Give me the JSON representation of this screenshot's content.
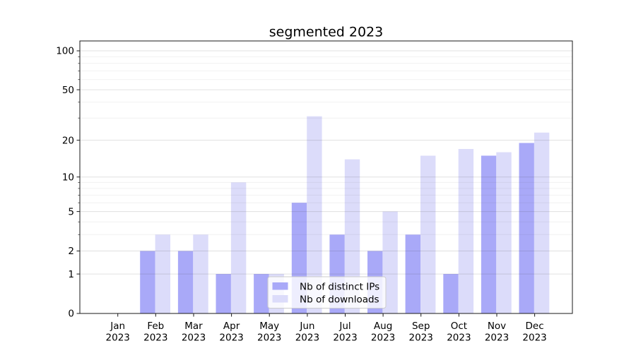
{
  "chart_data": {
    "type": "bar",
    "title": "segmented 2023",
    "categories": [
      "Jan",
      "Feb",
      "Mar",
      "Apr",
      "May",
      "Jun",
      "Jul",
      "Aug",
      "Sep",
      "Oct",
      "Nov",
      "Dec"
    ],
    "category_year": "2023",
    "series": [
      {
        "name": "Nb of distinct IPs",
        "color": "#a9a9f8",
        "values": [
          0,
          2,
          2,
          1,
          1,
          6,
          3,
          2,
          3,
          1,
          15,
          19
        ]
      },
      {
        "name": "Nb of downloads",
        "color": "#dcdcfa",
        "values": [
          0,
          3,
          3,
          9,
          1,
          31,
          14,
          5,
          15,
          17,
          16,
          23
        ]
      }
    ],
    "y_axis": {
      "scale": "segmented-log1p",
      "major_ticks": [
        0,
        1,
        2,
        5,
        10,
        20,
        50,
        100
      ],
      "minor_ticks": [
        3,
        4,
        6,
        7,
        8,
        9,
        30,
        40,
        60,
        70,
        80,
        90
      ],
      "ylim": [
        0,
        118
      ]
    },
    "grid": true,
    "legend_position": "bottom-center"
  }
}
